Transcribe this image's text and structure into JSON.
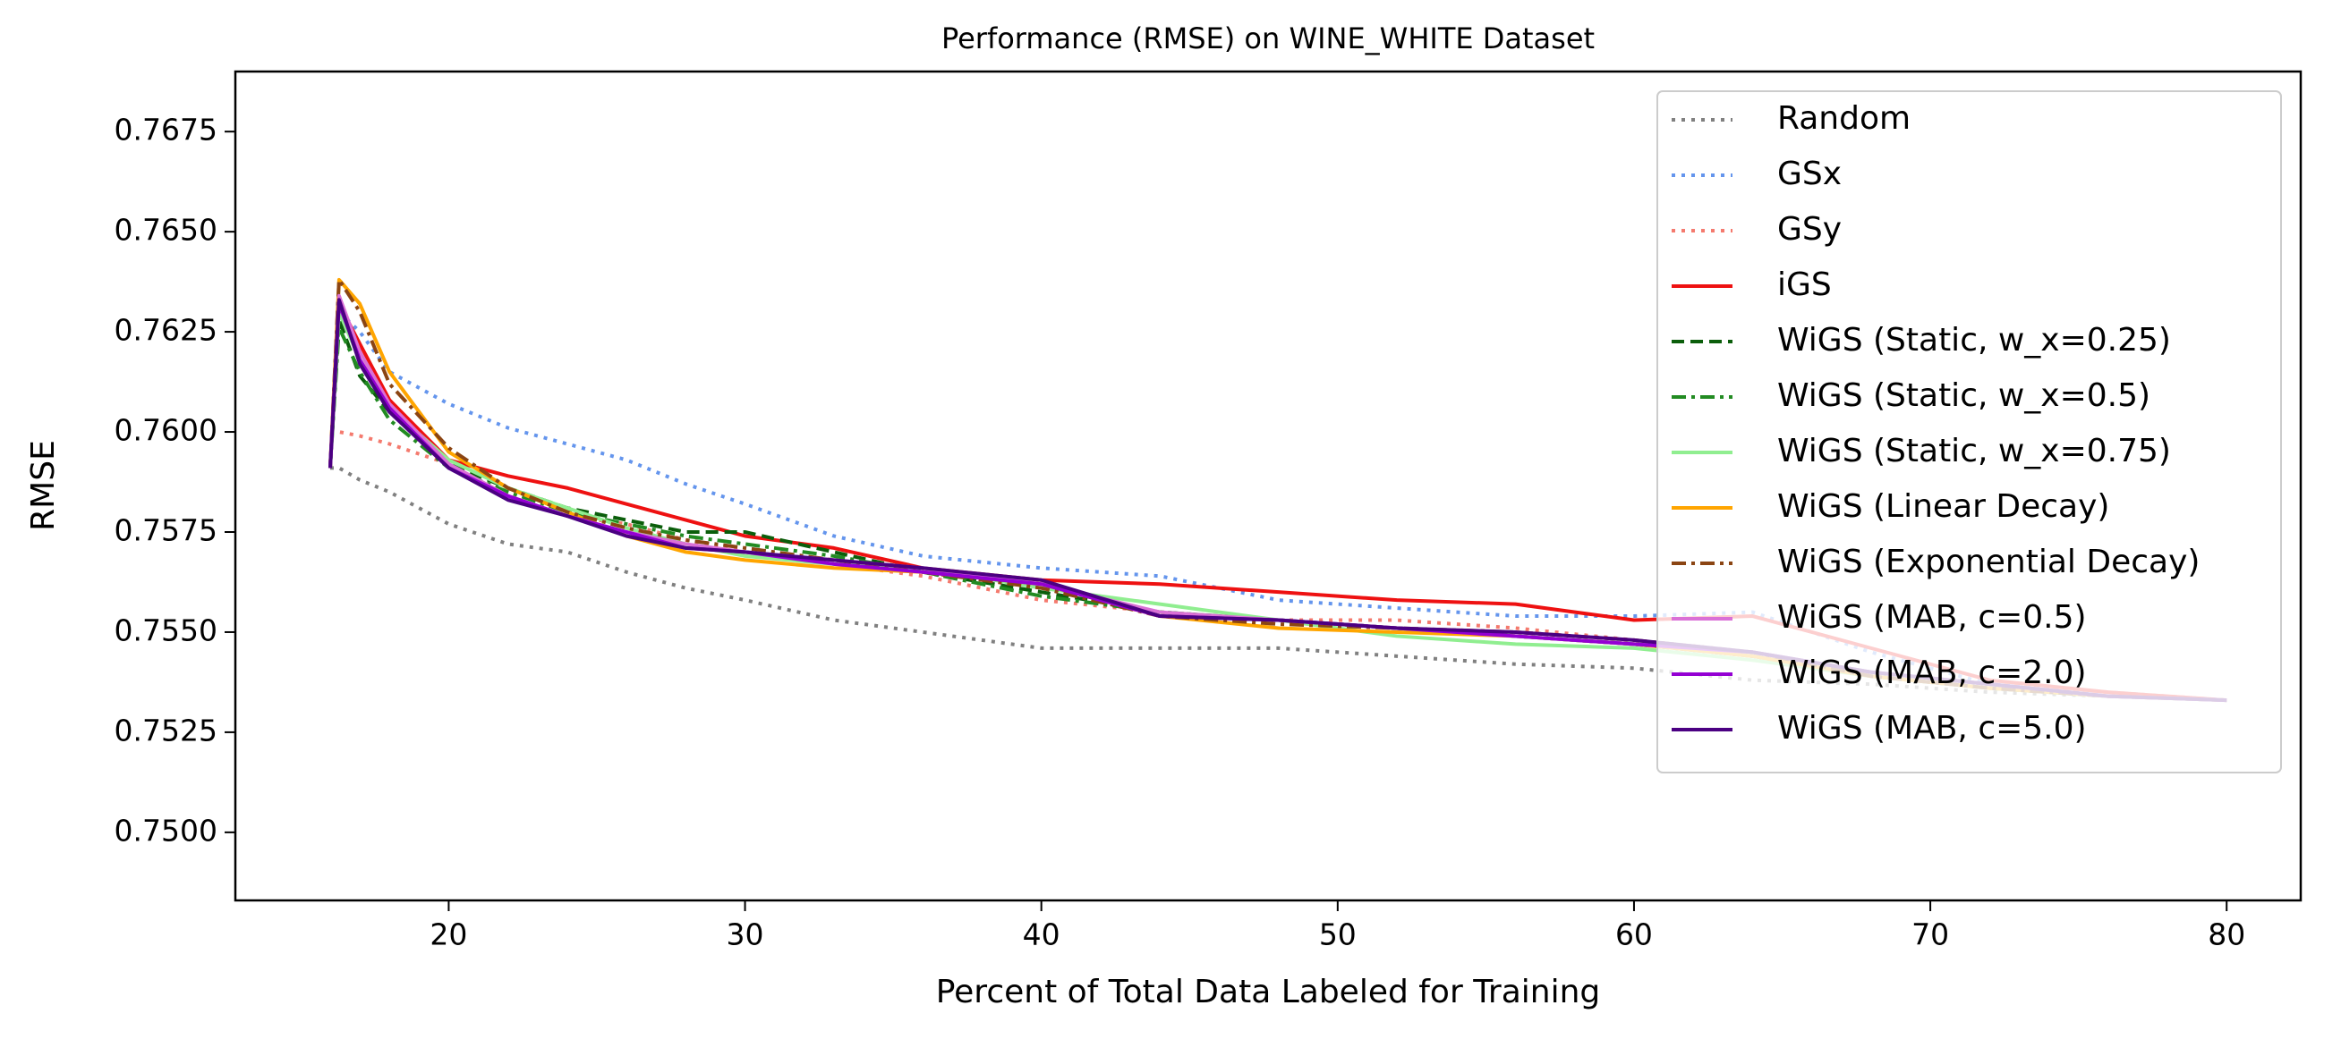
{
  "chart_data": {
    "type": "line",
    "title": "Performance (RMSE) on WINE_WHITE Dataset",
    "xlabel": "Percent of Total Data Labeled for Training",
    "ylabel": "RMSE",
    "x": [
      16,
      16.3,
      17,
      18,
      20,
      22,
      24,
      26,
      28,
      30,
      33,
      36,
      40,
      44,
      48,
      52,
      56,
      60,
      64,
      68,
      72,
      76,
      80
    ],
    "xlim": [
      12.8,
      82.5
    ],
    "xticks": [
      20,
      30,
      40,
      50,
      60,
      70,
      80
    ],
    "ylim": [
      0.7483,
      0.769
    ],
    "yticks": [
      {
        "value": 0.75,
        "label": "0.7500"
      },
      0.7525,
      {
        "value": 0.755,
        "label": "0.7550"
      },
      0.7575,
      {
        "value": 0.76,
        "label": "0.7600"
      },
      0.7625,
      {
        "value": 0.765,
        "label": "0.7650"
      },
      0.7675
    ],
    "legend": "upper right",
    "series": [
      {
        "name": "Random",
        "color": "#808080",
        "linestyle": "dotted",
        "values": [
          0.7591,
          0.7591,
          0.7588,
          0.7585,
          0.7577,
          0.7572,
          0.757,
          0.7565,
          0.7561,
          0.7558,
          0.7553,
          0.755,
          0.7546,
          0.7546,
          0.7546,
          0.7544,
          0.7542,
          0.7541,
          0.7538,
          0.7537,
          0.7535,
          0.7534,
          0.7533
        ]
      },
      {
        "name": "GSx",
        "color": "#6495ed",
        "linestyle": "dotted",
        "values": [
          0.7591,
          0.763,
          0.7625,
          0.7615,
          0.7607,
          0.7601,
          0.7597,
          0.7593,
          0.7587,
          0.7582,
          0.7574,
          0.7569,
          0.7566,
          0.7564,
          0.7558,
          0.7556,
          0.7554,
          0.7554,
          0.7555,
          0.7545,
          0.7537,
          0.7535,
          0.7533
        ]
      },
      {
        "name": "GSy",
        "color": "#f47a6e",
        "linestyle": "dotted",
        "values": [
          0.76,
          0.76,
          0.7599,
          0.7597,
          0.7592,
          0.7584,
          0.7579,
          0.7577,
          0.7573,
          0.757,
          0.7567,
          0.7564,
          0.7558,
          0.7555,
          0.7553,
          0.7553,
          0.7551,
          0.7548,
          0.7545,
          0.754,
          0.7537,
          0.7535,
          0.7533
        ]
      },
      {
        "name": "iGS",
        "color": "#ee1111",
        "linestyle": "solid",
        "values": [
          0.7591,
          0.7632,
          0.7622,
          0.7608,
          0.7593,
          0.7589,
          0.7586,
          0.7582,
          0.7578,
          0.7574,
          0.7571,
          0.7566,
          0.7563,
          0.7562,
          0.756,
          0.7558,
          0.7557,
          0.7553,
          0.7554,
          0.7546,
          0.7538,
          0.7535,
          0.7533
        ]
      },
      {
        "name": "WiGS (Static, w_x=0.25)",
        "color": "#0b5e0b",
        "linestyle": "dashed",
        "values": [
          0.7591,
          0.7628,
          0.7614,
          0.7605,
          0.7592,
          0.7586,
          0.7581,
          0.7578,
          0.7575,
          0.7575,
          0.757,
          0.7565,
          0.756,
          0.7555,
          0.7553,
          0.7551,
          0.7549,
          0.7547,
          0.7544,
          0.7539,
          0.7536,
          0.7534,
          0.7533
        ]
      },
      {
        "name": "WiGS (Static, w_x=0.5)",
        "color": "#228b22",
        "linestyle": "dashdot",
        "values": [
          0.7591,
          0.7626,
          0.7615,
          0.7603,
          0.7591,
          0.7585,
          0.758,
          0.7577,
          0.7574,
          0.7572,
          0.7569,
          0.7565,
          0.7559,
          0.7555,
          0.7553,
          0.7551,
          0.7549,
          0.7547,
          0.7544,
          0.7539,
          0.7536,
          0.7534,
          0.7533
        ]
      },
      {
        "name": "WiGS (Static, w_x=0.75)",
        "color": "#90ee90",
        "linestyle": "solid",
        "values": [
          0.7591,
          0.763,
          0.7618,
          0.7606,
          0.7593,
          0.7586,
          0.7581,
          0.7576,
          0.7572,
          0.7569,
          0.7567,
          0.7566,
          0.7561,
          0.7557,
          0.7553,
          0.7549,
          0.7547,
          0.7546,
          0.7543,
          0.7539,
          0.7536,
          0.7534,
          0.7533
        ]
      },
      {
        "name": "WiGS (Linear Decay)",
        "color": "#ffa500",
        "linestyle": "solid",
        "values": [
          0.7591,
          0.7638,
          0.7632,
          0.7615,
          0.7595,
          0.7586,
          0.758,
          0.7574,
          0.757,
          0.7568,
          0.7566,
          0.7565,
          0.7562,
          0.7554,
          0.7551,
          0.755,
          0.7549,
          0.7547,
          0.7544,
          0.7539,
          0.7536,
          0.7534,
          0.7533
        ]
      },
      {
        "name": "WiGS (Exponential Decay)",
        "color": "#8b4513",
        "linestyle": "dashdot",
        "values": [
          0.7591,
          0.7638,
          0.763,
          0.7612,
          0.7596,
          0.7586,
          0.758,
          0.7576,
          0.7573,
          0.7571,
          0.7568,
          0.7565,
          0.7561,
          0.7554,
          0.7552,
          0.7551,
          0.755,
          0.7548,
          0.7545,
          0.7539,
          0.7536,
          0.7534,
          0.7533
        ]
      },
      {
        "name": "WiGS (MAB, c=0.5)",
        "color": "#da70d6",
        "linestyle": "solid",
        "values": [
          0.7591,
          0.7634,
          0.762,
          0.7607,
          0.7592,
          0.7584,
          0.7579,
          0.7575,
          0.7572,
          0.757,
          0.7568,
          0.7566,
          0.7562,
          0.7555,
          0.7553,
          0.7551,
          0.7549,
          0.7547,
          0.7545,
          0.754,
          0.7537,
          0.7534,
          0.7533
        ]
      },
      {
        "name": "WiGS (MAB, c=2.0)",
        "color": "#9400d3",
        "linestyle": "solid",
        "values": [
          0.7591,
          0.7632,
          0.7618,
          0.7606,
          0.7591,
          0.7584,
          0.7579,
          0.7575,
          0.7571,
          0.757,
          0.7567,
          0.7565,
          0.7562,
          0.7554,
          0.7553,
          0.7551,
          0.7549,
          0.7547,
          0.7545,
          0.754,
          0.7537,
          0.7534,
          0.7533
        ]
      },
      {
        "name": "WiGS (MAB, c=5.0)",
        "color": "#4b0082",
        "linestyle": "solid",
        "values": [
          0.7591,
          0.7633,
          0.7617,
          0.7605,
          0.7591,
          0.7583,
          0.7579,
          0.7574,
          0.7571,
          0.757,
          0.7568,
          0.7566,
          0.7563,
          0.7554,
          0.7553,
          0.7551,
          0.755,
          0.7548,
          0.7545,
          0.754,
          0.7537,
          0.7534,
          0.7533
        ]
      }
    ]
  }
}
